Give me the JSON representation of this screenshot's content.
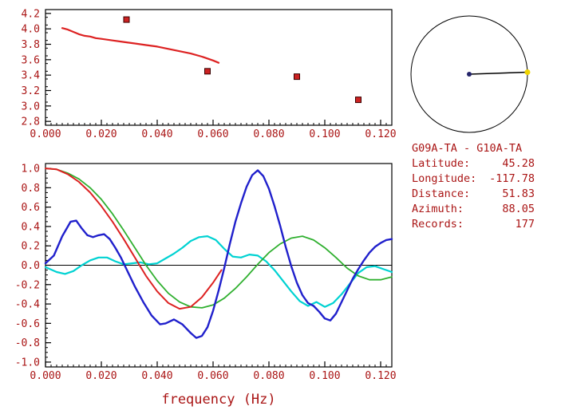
{
  "colors": {
    "axis": "#000000",
    "text": "#aa1515",
    "background": "#ffffff"
  },
  "compass": {
    "azimuth_deg": 88.05,
    "outline_color": "#000000",
    "line_color": "#000000",
    "center_dot_color": "#24246a",
    "end_dot_color": "#f0d400"
  },
  "info_panel": {
    "title": "G09A-TA - G10A-TA",
    "rows": [
      {
        "label": "Latitude:",
        "value": "45.28"
      },
      {
        "label": "Longitude:",
        "value": "-117.78"
      },
      {
        "label": "Distance:",
        "value": "51.83"
      },
      {
        "label": "Azimuth:",
        "value": "88.05"
      },
      {
        "label": "Records:",
        "value": "177"
      }
    ]
  },
  "chart_data": [
    {
      "type": "line",
      "name": "phase-velocity-dispersion",
      "title": "",
      "xlabel": "",
      "ylabel": "",
      "xlim": [
        0,
        0.124
      ],
      "ylim": [
        2.75,
        4.25
      ],
      "grid": false,
      "zero_line": false,
      "x_minor_step": 0.002,
      "y_minor_step": 0.1,
      "xtick_values": [
        0,
        0.02,
        0.04,
        0.06,
        0.08,
        0.1,
        0.12
      ],
      "xtick_labels": [
        "0.000",
        "0.020",
        "0.040",
        "0.060",
        "0.080",
        "0.100",
        "0.120"
      ],
      "ytick_values": [
        2.8,
        3.0,
        3.2,
        3.4,
        3.6,
        3.8,
        4.0,
        4.2
      ],
      "ytick_labels": [
        "2.8",
        "3.0",
        "3.2",
        "3.4",
        "3.6",
        "3.8",
        "4.0",
        "4.2"
      ],
      "series": [
        {
          "name": "dispersion-curve",
          "type": "line",
          "color": "#dd2222",
          "width": 2.2,
          "points": [
            [
              0.006,
              4.01
            ],
            [
              0.008,
              3.99
            ],
            [
              0.01,
              3.96
            ],
            [
              0.012,
              3.93
            ],
            [
              0.014,
              3.91
            ],
            [
              0.016,
              3.9
            ],
            [
              0.018,
              3.88
            ],
            [
              0.02,
              3.87
            ],
            [
              0.024,
              3.85
            ],
            [
              0.028,
              3.83
            ],
            [
              0.032,
              3.81
            ],
            [
              0.036,
              3.79
            ],
            [
              0.04,
              3.77
            ],
            [
              0.044,
              3.74
            ],
            [
              0.048,
              3.71
            ],
            [
              0.052,
              3.68
            ],
            [
              0.056,
              3.64
            ],
            [
              0.06,
              3.59
            ],
            [
              0.062,
              3.56
            ]
          ]
        },
        {
          "name": "dispersion-picks",
          "type": "points",
          "marker": "square",
          "color": "#cc2222",
          "edge": "#3a0000",
          "points": [
            [
              0.029,
              4.12
            ],
            [
              0.058,
              3.45
            ],
            [
              0.09,
              3.38
            ],
            [
              0.112,
              3.08
            ]
          ]
        }
      ]
    },
    {
      "type": "line",
      "name": "waveform-comparison",
      "title": "",
      "xlabel": "frequency (Hz)",
      "ylabel": "",
      "xlim": [
        0,
        0.124
      ],
      "ylim": [
        -1.05,
        1.05
      ],
      "grid": false,
      "zero_line": true,
      "x_minor_step": 0.002,
      "y_minor_step": 0.05,
      "xtick_values": [
        0,
        0.02,
        0.04,
        0.06,
        0.08,
        0.1,
        0.12
      ],
      "xtick_labels": [
        "0.000",
        "0.020",
        "0.040",
        "0.060",
        "0.080",
        "0.100",
        "0.120"
      ],
      "ytick_values": [
        -1.0,
        -0.8,
        -0.6,
        -0.4,
        -0.2,
        0.0,
        0.2,
        0.4,
        0.6,
        0.8,
        1.0
      ],
      "ytick_labels": [
        "-1.0",
        "-0.8",
        "-0.6",
        "-0.4",
        "-0.2",
        "0.0",
        "0.2",
        "0.4",
        "0.6",
        "0.8",
        "1.0"
      ],
      "series": [
        {
          "name": "cyan-series",
          "type": "line",
          "color": "#00d2d2",
          "width": 2.2,
          "points": [
            [
              0,
              -0.02
            ],
            [
              0.004,
              -0.07
            ],
            [
              0.007,
              -0.09
            ],
            [
              0.01,
              -0.06
            ],
            [
              0.013,
              0.0
            ],
            [
              0.016,
              0.05
            ],
            [
              0.019,
              0.08
            ],
            [
              0.022,
              0.08
            ],
            [
              0.025,
              0.04
            ],
            [
              0.028,
              0.01
            ],
            [
              0.031,
              0.02
            ],
            [
              0.034,
              0.03
            ],
            [
              0.037,
              0.01
            ],
            [
              0.04,
              0.02
            ],
            [
              0.043,
              0.07
            ],
            [
              0.046,
              0.12
            ],
            [
              0.049,
              0.18
            ],
            [
              0.052,
              0.25
            ],
            [
              0.055,
              0.29
            ],
            [
              0.058,
              0.3
            ],
            [
              0.061,
              0.26
            ],
            [
              0.064,
              0.17
            ],
            [
              0.067,
              0.09
            ],
            [
              0.07,
              0.08
            ],
            [
              0.073,
              0.11
            ],
            [
              0.076,
              0.1
            ],
            [
              0.079,
              0.04
            ],
            [
              0.082,
              -0.05
            ],
            [
              0.085,
              -0.16
            ],
            [
              0.088,
              -0.27
            ],
            [
              0.091,
              -0.37
            ],
            [
              0.094,
              -0.42
            ],
            [
              0.097,
              -0.38
            ],
            [
              0.1,
              -0.43
            ],
            [
              0.103,
              -0.39
            ],
            [
              0.106,
              -0.3
            ],
            [
              0.109,
              -0.19
            ],
            [
              0.112,
              -0.08
            ],
            [
              0.115,
              -0.02
            ],
            [
              0.118,
              -0.01
            ],
            [
              0.121,
              -0.04
            ],
            [
              0.124,
              -0.07
            ]
          ]
        },
        {
          "name": "green-series",
          "type": "line",
          "color": "#30b030",
          "width": 1.8,
          "points": [
            [
              0,
              1.0
            ],
            [
              0.004,
              0.99
            ],
            [
              0.008,
              0.95
            ],
            [
              0.012,
              0.89
            ],
            [
              0.016,
              0.8
            ],
            [
              0.02,
              0.68
            ],
            [
              0.024,
              0.53
            ],
            [
              0.028,
              0.36
            ],
            [
              0.032,
              0.18
            ],
            [
              0.036,
              0.0
            ],
            [
              0.04,
              -0.16
            ],
            [
              0.044,
              -0.29
            ],
            [
              0.048,
              -0.38
            ],
            [
              0.052,
              -0.43
            ],
            [
              0.056,
              -0.44
            ],
            [
              0.06,
              -0.41
            ],
            [
              0.064,
              -0.34
            ],
            [
              0.068,
              -0.24
            ],
            [
              0.072,
              -0.12
            ],
            [
              0.076,
              0.01
            ],
            [
              0.08,
              0.13
            ],
            [
              0.084,
              0.22
            ],
            [
              0.088,
              0.28
            ],
            [
              0.092,
              0.3
            ],
            [
              0.096,
              0.26
            ],
            [
              0.1,
              0.18
            ],
            [
              0.104,
              0.08
            ],
            [
              0.108,
              -0.03
            ],
            [
              0.112,
              -0.11
            ],
            [
              0.116,
              -0.15
            ],
            [
              0.12,
              -0.15
            ],
            [
              0.124,
              -0.12
            ]
          ]
        },
        {
          "name": "blue-series",
          "type": "line",
          "color": "#2020cc",
          "width": 2.4,
          "points": [
            [
              0,
              0.02
            ],
            [
              0.003,
              0.1
            ],
            [
              0.006,
              0.3
            ],
            [
              0.009,
              0.45
            ],
            [
              0.011,
              0.46
            ],
            [
              0.013,
              0.38
            ],
            [
              0.015,
              0.31
            ],
            [
              0.017,
              0.29
            ],
            [
              0.019,
              0.31
            ],
            [
              0.021,
              0.32
            ],
            [
              0.023,
              0.27
            ],
            [
              0.025,
              0.18
            ],
            [
              0.027,
              0.08
            ],
            [
              0.029,
              -0.04
            ],
            [
              0.032,
              -0.22
            ],
            [
              0.035,
              -0.38
            ],
            [
              0.038,
              -0.52
            ],
            [
              0.041,
              -0.61
            ],
            [
              0.043,
              -0.6
            ],
            [
              0.046,
              -0.56
            ],
            [
              0.049,
              -0.61
            ],
            [
              0.052,
              -0.7
            ],
            [
              0.054,
              -0.75
            ],
            [
              0.056,
              -0.73
            ],
            [
              0.058,
              -0.64
            ],
            [
              0.06,
              -0.47
            ],
            [
              0.062,
              -0.26
            ],
            [
              0.064,
              -0.03
            ],
            [
              0.066,
              0.22
            ],
            [
              0.068,
              0.45
            ],
            [
              0.07,
              0.64
            ],
            [
              0.072,
              0.81
            ],
            [
              0.074,
              0.93
            ],
            [
              0.076,
              0.98
            ],
            [
              0.078,
              0.92
            ],
            [
              0.08,
              0.79
            ],
            [
              0.082,
              0.61
            ],
            [
              0.084,
              0.41
            ],
            [
              0.086,
              0.19
            ],
            [
              0.088,
              -0.01
            ],
            [
              0.09,
              -0.18
            ],
            [
              0.092,
              -0.31
            ],
            [
              0.094,
              -0.39
            ],
            [
              0.096,
              -0.42
            ],
            [
              0.098,
              -0.48
            ],
            [
              0.1,
              -0.55
            ],
            [
              0.102,
              -0.57
            ],
            [
              0.104,
              -0.5
            ],
            [
              0.106,
              -0.38
            ],
            [
              0.108,
              -0.26
            ],
            [
              0.11,
              -0.14
            ],
            [
              0.112,
              -0.04
            ],
            [
              0.114,
              0.05
            ],
            [
              0.116,
              0.13
            ],
            [
              0.118,
              0.19
            ],
            [
              0.12,
              0.23
            ],
            [
              0.122,
              0.26
            ],
            [
              0.124,
              0.27
            ]
          ]
        },
        {
          "name": "red-series",
          "type": "line",
          "color": "#dd2222",
          "width": 2.0,
          "points": [
            [
              0,
              1.0
            ],
            [
              0.004,
              0.99
            ],
            [
              0.008,
              0.94
            ],
            [
              0.012,
              0.86
            ],
            [
              0.016,
              0.75
            ],
            [
              0.02,
              0.61
            ],
            [
              0.024,
              0.45
            ],
            [
              0.028,
              0.27
            ],
            [
              0.032,
              0.08
            ],
            [
              0.036,
              -0.11
            ],
            [
              0.04,
              -0.27
            ],
            [
              0.044,
              -0.39
            ],
            [
              0.048,
              -0.45
            ],
            [
              0.052,
              -0.43
            ],
            [
              0.056,
              -0.33
            ],
            [
              0.06,
              -0.18
            ],
            [
              0.063,
              -0.05
            ]
          ]
        }
      ]
    }
  ]
}
